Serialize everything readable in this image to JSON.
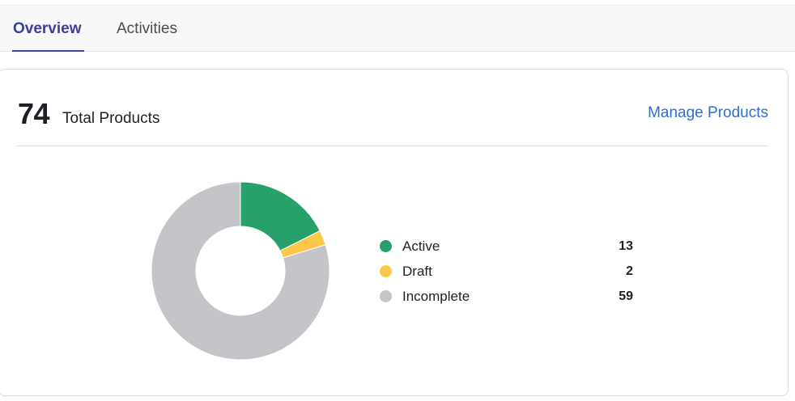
{
  "tabs": [
    {
      "label": "Overview",
      "active": true
    },
    {
      "label": "Activities",
      "active": false
    }
  ],
  "summary": {
    "total_count": "74",
    "total_label": "Total Products",
    "manage_link": "Manage Products"
  },
  "legend": [
    {
      "label": "Active",
      "value": "13",
      "color": "#27a06b"
    },
    {
      "label": "Draft",
      "value": "2",
      "color": "#fdc84a"
    },
    {
      "label": "Incomplete",
      "value": "59",
      "color": "#c4c5c8"
    }
  ],
  "colors": {
    "accent": "#3b3fa6",
    "link": "#2f6fcf"
  },
  "chart_data": {
    "type": "pie",
    "categories": [
      "Active",
      "Draft",
      "Incomplete"
    ],
    "values": [
      13,
      2,
      59
    ],
    "colors": [
      "#27a06b",
      "#fdc84a",
      "#c4c5c8"
    ],
    "donut": true
  }
}
